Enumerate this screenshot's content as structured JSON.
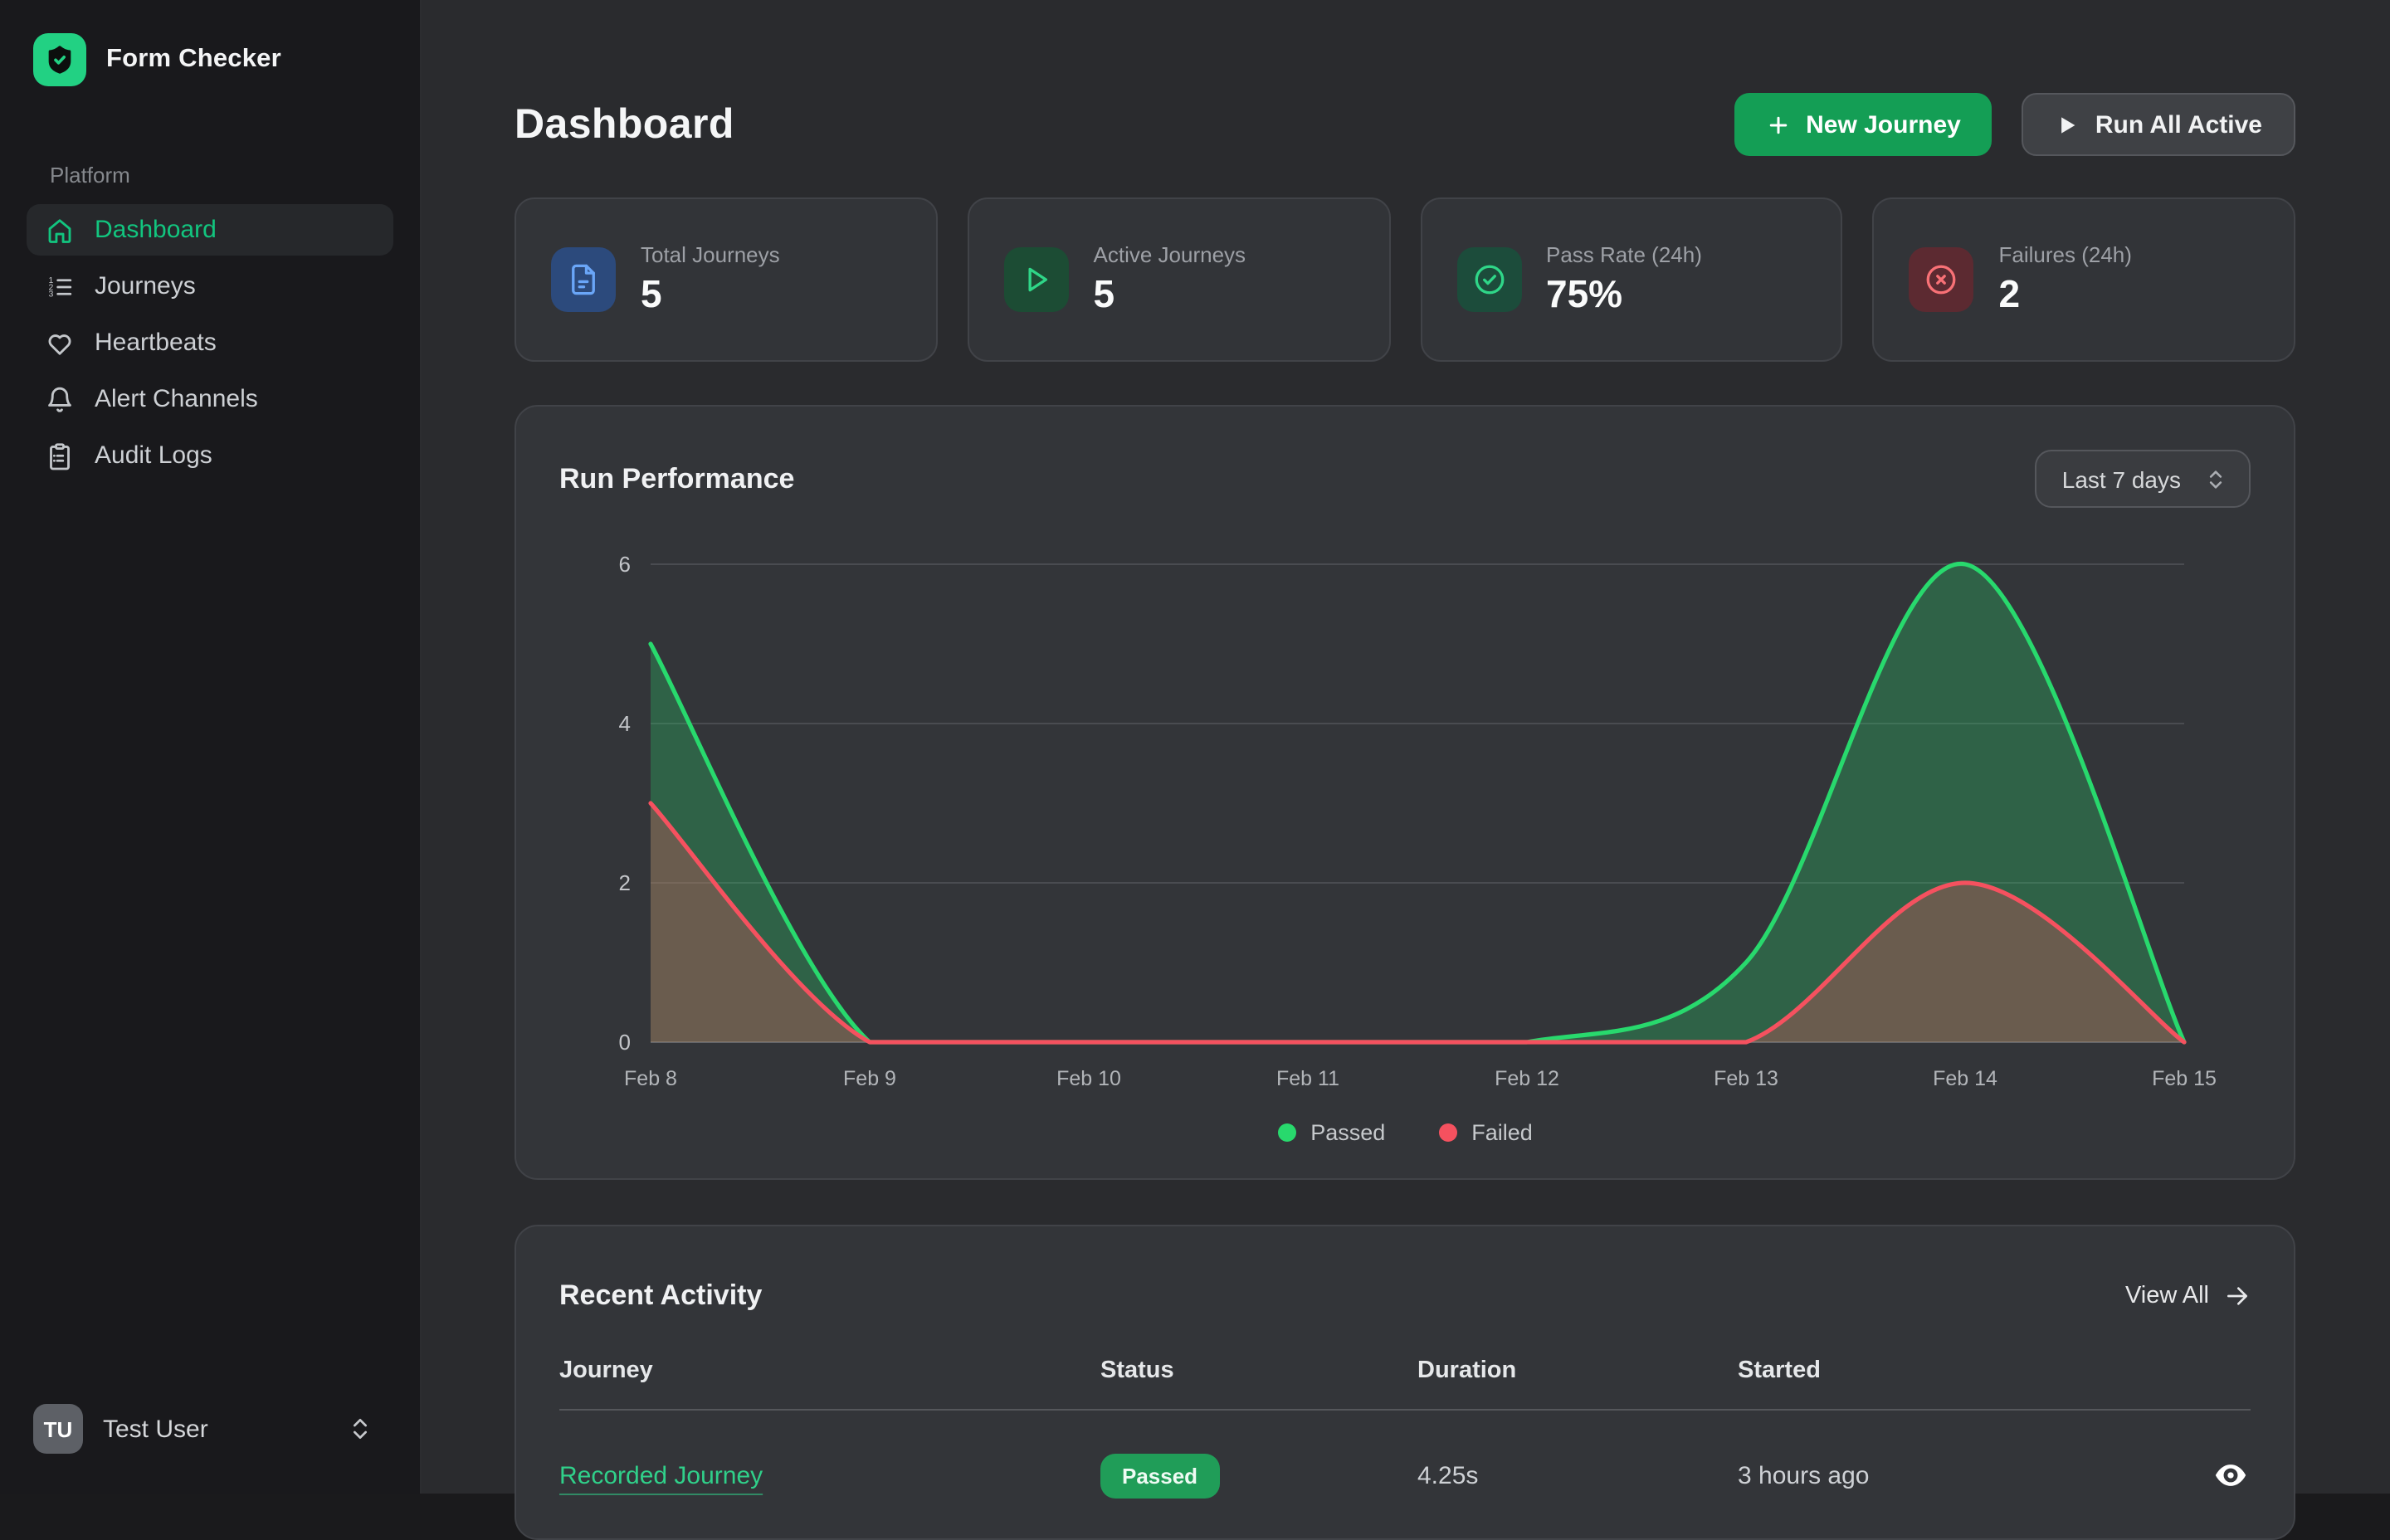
{
  "sidebar": {
    "brand": "Form Checker",
    "section_label": "Platform",
    "items": [
      {
        "label": "Dashboard",
        "icon": "home-icon",
        "active": true
      },
      {
        "label": "Journeys",
        "icon": "list-ordered-icon",
        "active": false
      },
      {
        "label": "Heartbeats",
        "icon": "heart-icon",
        "active": false
      },
      {
        "label": "Alert Channels",
        "icon": "bell-icon",
        "active": false
      },
      {
        "label": "Audit Logs",
        "icon": "clipboard-list-icon",
        "active": false
      }
    ],
    "user": {
      "initials": "TU",
      "name": "Test User"
    }
  },
  "header": {
    "title": "Dashboard",
    "new_journey_label": "New Journey",
    "run_all_label": "Run All Active"
  },
  "stats": [
    {
      "label": "Total Journeys",
      "value": "5",
      "icon": "file-text-icon",
      "accent": "#6aa6f8",
      "accent_bg": "#2c4a7c"
    },
    {
      "label": "Active Journeys",
      "value": "5",
      "icon": "play-icon",
      "accent": "#2fd688",
      "accent_bg": "#1c4c34"
    },
    {
      "label": "Pass Rate (24h)",
      "value": "75%",
      "icon": "circle-check-icon",
      "accent": "#2fd688",
      "accent_bg": "#1c4c3b"
    },
    {
      "label": "Failures (24h)",
      "value": "2",
      "icon": "circle-x-icon",
      "accent": "#f87176",
      "accent_bg": "#5c2a31"
    }
  ],
  "chart_card": {
    "title": "Run Performance",
    "range_selected": "Last 7 days"
  },
  "chart_data": {
    "type": "area",
    "x": [
      "Feb 8",
      "Feb 9",
      "Feb 10",
      "Feb 11",
      "Feb 12",
      "Feb 13",
      "Feb 14",
      "Feb 15"
    ],
    "series": [
      {
        "name": "Passed",
        "color": "#28d96d",
        "fill_opacity": 0.28,
        "values": [
          5,
          0,
          0,
          0,
          0,
          1,
          6,
          0
        ]
      },
      {
        "name": "Failed",
        "color": "#f5515f",
        "fill_opacity": 0.3,
        "values": [
          3,
          0,
          0,
          0,
          0,
          0,
          2,
          0
        ]
      }
    ],
    "ylim": [
      0,
      6
    ],
    "yticks": [
      0,
      2,
      4,
      6
    ],
    "grid": true,
    "legend_position": "bottom"
  },
  "activity": {
    "title": "Recent Activity",
    "view_all_label": "View All",
    "columns": [
      "Journey",
      "Status",
      "Duration",
      "Started"
    ],
    "rows": [
      {
        "journey": "Recorded Journey",
        "status": "Passed",
        "duration": "4.25s",
        "started": "3 hours ago"
      }
    ]
  }
}
